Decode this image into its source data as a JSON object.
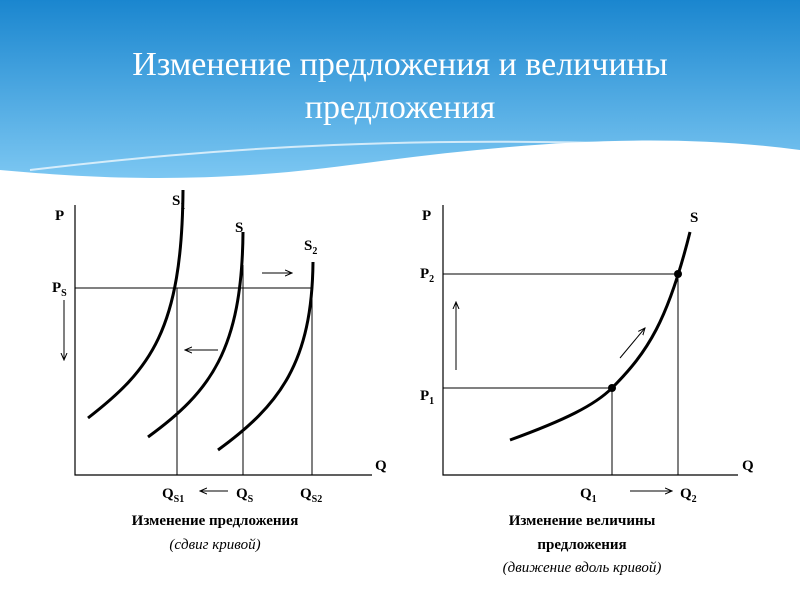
{
  "header": {
    "title_lines": [
      "Изменение предложения и величины",
      "предложения"
    ]
  },
  "left": {
    "axis_p": "P",
    "axis_q": "Q",
    "price": {
      "main": "P",
      "sub": "S"
    },
    "curves": [
      {
        "main": "S",
        "sub": "1"
      },
      {
        "main": "S",
        "sub": ""
      },
      {
        "main": "S",
        "sub": "2"
      }
    ],
    "quantities": [
      {
        "main": "Q",
        "sub": "S1"
      },
      {
        "main": "Q",
        "sub": "S"
      },
      {
        "main": "Q",
        "sub": "S2"
      }
    ],
    "caption": "Изменение предложения",
    "note": "(сдвиг кривой)"
  },
  "right": {
    "axis_p": "P",
    "axis_q": "Q",
    "curve": "S",
    "prices": [
      {
        "main": "P",
        "sub": "2"
      },
      {
        "main": "P",
        "sub": "1"
      }
    ],
    "quantities": [
      {
        "main": "Q",
        "sub": "1"
      },
      {
        "main": "Q",
        "sub": "2"
      }
    ],
    "caption_lines": [
      "Изменение величины",
      "предложения"
    ],
    "note": "(движение вдоль кривой)"
  }
}
